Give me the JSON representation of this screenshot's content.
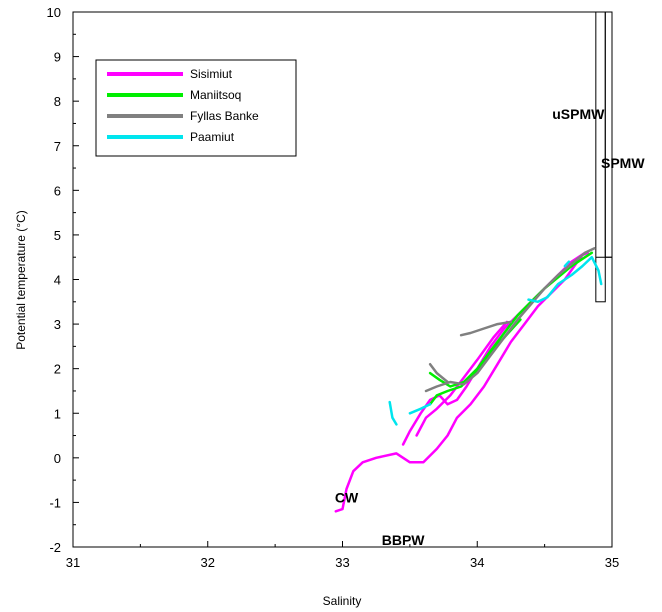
{
  "chart_data": {
    "type": "line",
    "xlabel": "Salinity",
    "ylabel": "Potential temperature (°C)",
    "xlim": [
      31,
      35
    ],
    "ylim": [
      -2,
      10
    ],
    "xticks": [
      "31",
      "32",
      "33",
      "34",
      "35"
    ],
    "yticks": [
      "-2",
      "-1",
      "0",
      "1",
      "2",
      "3",
      "4",
      "5",
      "6",
      "7",
      "8",
      "9",
      "10"
    ],
    "grid": false,
    "legend_position": "top-left",
    "series": [
      {
        "name": "Sisimiut",
        "color": "#ff00ff",
        "segments": [
          [
            [
              32.95,
              -1.2
            ],
            [
              33.0,
              -1.15
            ],
            [
              33.03,
              -0.7
            ],
            [
              33.08,
              -0.3
            ],
            [
              33.15,
              -0.1
            ],
            [
              33.25,
              0.0
            ],
            [
              33.4,
              0.1
            ],
            [
              33.5,
              -0.1
            ],
            [
              33.6,
              -0.1
            ],
            [
              33.7,
              0.2
            ],
            [
              33.78,
              0.5
            ],
            [
              33.85,
              0.9
            ],
            [
              33.95,
              1.2
            ],
            [
              34.05,
              1.6
            ],
            [
              34.15,
              2.1
            ],
            [
              34.25,
              2.6
            ],
            [
              34.35,
              3.0
            ],
            [
              34.45,
              3.4
            ],
            [
              34.55,
              3.7
            ],
            [
              34.65,
              4.0
            ],
            [
              34.72,
              4.3
            ],
            [
              34.78,
              4.55
            ],
            [
              34.82,
              4.6
            ]
          ],
          [
            [
              33.45,
              0.3
            ],
            [
              33.5,
              0.6
            ],
            [
              33.58,
              1.0
            ],
            [
              33.65,
              1.3
            ],
            [
              33.72,
              1.4
            ],
            [
              33.78,
              1.2
            ],
            [
              33.85,
              1.3
            ],
            [
              33.92,
              1.6
            ],
            [
              34.0,
              2.0
            ],
            [
              34.1,
              2.5
            ],
            [
              34.2,
              2.9
            ],
            [
              34.3,
              3.2
            ],
            [
              34.4,
              3.5
            ],
            [
              34.5,
              3.8
            ],
            [
              34.6,
              4.1
            ],
            [
              34.7,
              4.4
            ],
            [
              34.8,
              4.6
            ]
          ],
          [
            [
              33.55,
              0.5
            ],
            [
              33.62,
              0.9
            ],
            [
              33.7,
              1.1
            ],
            [
              33.8,
              1.4
            ],
            [
              33.9,
              1.8
            ],
            [
              34.0,
              2.2
            ],
            [
              34.12,
              2.7
            ],
            [
              34.22,
              3.05
            ]
          ]
        ]
      },
      {
        "name": "Maniitsoq",
        "color": "#00ee00",
        "segments": [
          [
            [
              33.65,
              1.9
            ],
            [
              33.72,
              1.75
            ],
            [
              33.8,
              1.6
            ],
            [
              33.9,
              1.7
            ],
            [
              34.0,
              2.0
            ],
            [
              34.1,
              2.4
            ],
            [
              34.2,
              2.8
            ],
            [
              34.3,
              3.2
            ],
            [
              34.4,
              3.5
            ],
            [
              34.5,
              3.8
            ],
            [
              34.6,
              4.05
            ],
            [
              34.7,
              4.3
            ],
            [
              34.8,
              4.5
            ],
            [
              34.85,
              4.6
            ]
          ],
          [
            [
              33.65,
              1.2
            ],
            [
              33.7,
              1.4
            ],
            [
              33.78,
              1.5
            ],
            [
              33.88,
              1.6
            ],
            [
              33.98,
              1.9
            ],
            [
              34.08,
              2.3
            ],
            [
              34.2,
              2.7
            ],
            [
              34.32,
              3.1
            ]
          ]
        ]
      },
      {
        "name": "Fyllas Banke",
        "color": "#808080",
        "segments": [
          [
            [
              33.88,
              2.75
            ],
            [
              33.95,
              2.8
            ],
            [
              34.05,
              2.9
            ],
            [
              34.15,
              3.0
            ],
            [
              34.25,
              3.05
            ]
          ],
          [
            [
              33.62,
              1.5
            ],
            [
              33.7,
              1.6
            ],
            [
              33.8,
              1.7
            ],
            [
              33.9,
              1.65
            ],
            [
              34.0,
              1.9
            ],
            [
              34.1,
              2.3
            ],
            [
              34.2,
              2.7
            ],
            [
              34.3,
              3.1
            ],
            [
              34.4,
              3.45
            ],
            [
              34.5,
              3.8
            ],
            [
              34.6,
              4.1
            ],
            [
              34.7,
              4.35
            ],
            [
              34.8,
              4.6
            ],
            [
              34.87,
              4.7
            ]
          ],
          [
            [
              33.65,
              2.1
            ],
            [
              33.7,
              1.9
            ],
            [
              33.78,
              1.7
            ]
          ]
        ]
      },
      {
        "name": "Paamiut",
        "color": "#00e5ee",
        "segments": [
          [
            [
              33.35,
              1.25
            ],
            [
              33.37,
              0.9
            ],
            [
              33.4,
              0.75
            ]
          ],
          [
            [
              33.5,
              1.0
            ],
            [
              33.58,
              1.1
            ],
            [
              33.65,
              1.2
            ]
          ],
          [
            [
              34.38,
              3.55
            ],
            [
              34.45,
              3.5
            ],
            [
              34.52,
              3.6
            ],
            [
              34.6,
              3.9
            ],
            [
              34.7,
              4.1
            ],
            [
              34.78,
              4.3
            ],
            [
              34.85,
              4.5
            ],
            [
              34.9,
              4.2
            ],
            [
              34.92,
              3.9
            ]
          ],
          [
            [
              34.65,
              4.3
            ],
            [
              34.68,
              4.4
            ]
          ]
        ]
      }
    ],
    "annotations": [
      {
        "text": "uSPMW",
        "x": 34.75,
        "y": 7.6
      },
      {
        "text": "SPMW",
        "x": 35.08,
        "y": 6.5
      },
      {
        "text": "CW",
        "x": 33.03,
        "y": -1.0
      },
      {
        "text": "BBPW",
        "x": 33.45,
        "y": -1.95
      }
    ],
    "boxes": [
      {
        "x0": 34.88,
        "x1": 34.95,
        "y0": 3.5,
        "y1": 10
      },
      {
        "x0": 34.95,
        "x1": 35.0,
        "y0": 4.5,
        "y1": 10
      }
    ],
    "hline": {
      "x0": 34.88,
      "x1": 35.0,
      "y": 4.5
    }
  }
}
